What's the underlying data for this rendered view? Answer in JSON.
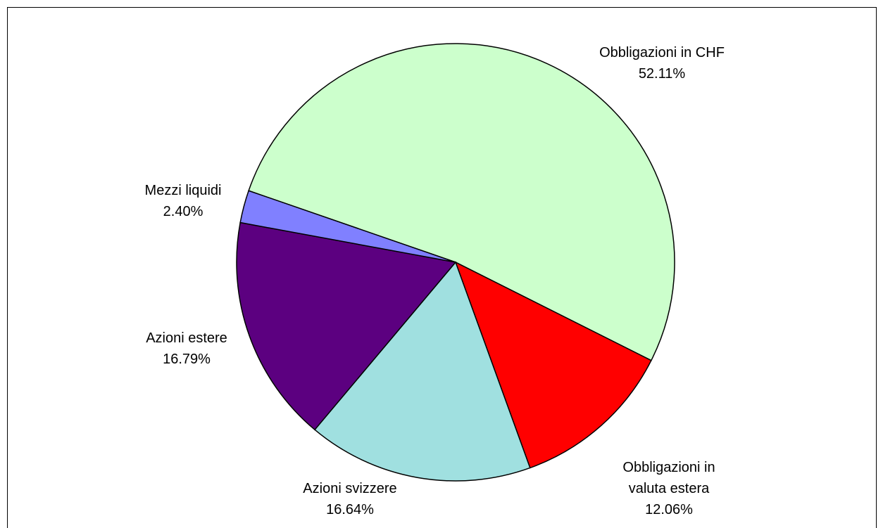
{
  "chart_data": {
    "type": "pie",
    "categories": [
      "Obbligazioni in CHF",
      "Obbligazioni in valuta estera",
      "Azioni svizzere",
      "Azioni estere",
      "Mezzi liquidi"
    ],
    "values": [
      52.11,
      12.06,
      16.64,
      16.79,
      2.4
    ],
    "value_labels": [
      "52.11%",
      "12.06%",
      "16.64%",
      "16.79%",
      "2.40%"
    ],
    "colors": [
      "#ccffcc",
      "#ff0000",
      "#a0e0e0",
      "#5c0080",
      "#8080ff"
    ]
  }
}
